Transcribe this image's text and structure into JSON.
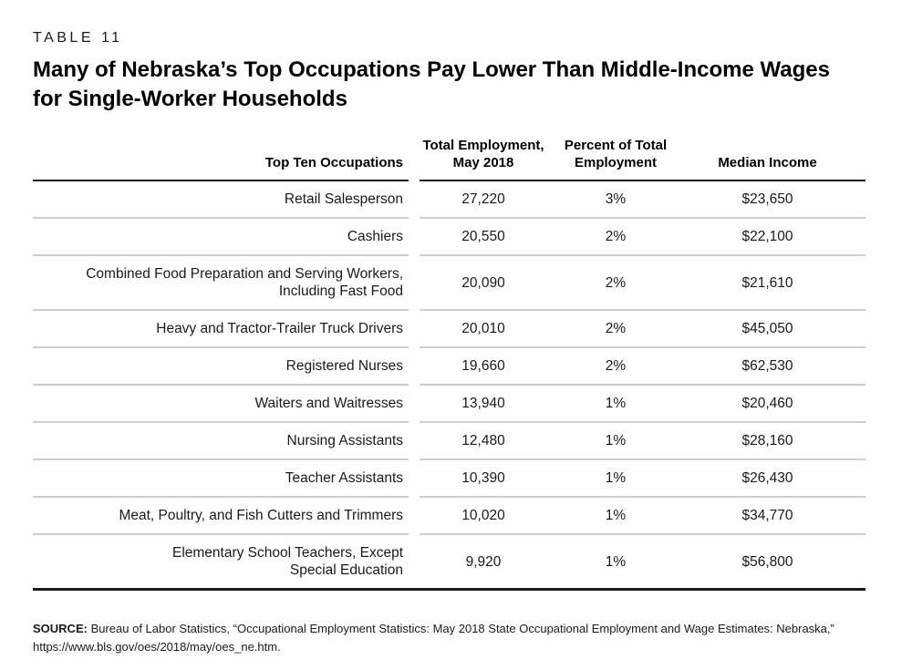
{
  "chart_data": {
    "type": "table",
    "table_label": "TABLE 11",
    "title": "Many of Nebraska’s Top Occupations Pay Lower Than Middle-Income Wages for Single-Worker Households",
    "columns": [
      "Top Ten Occupations",
      "Total Employment, May 2018",
      "Percent of Total Employment",
      "Median Income"
    ],
    "rows": [
      [
        "Retail Salesperson",
        "27,220",
        "3%",
        "$23,650"
      ],
      [
        "Cashiers",
        "20,550",
        "2%",
        "$22,100"
      ],
      [
        "Combined Food Preparation and Serving Workers, Including Fast Food",
        "20,090",
        "2%",
        "$21,610"
      ],
      [
        "Heavy and Tractor-Trailer Truck Drivers",
        "20,010",
        "2%",
        "$45,050"
      ],
      [
        "Registered Nurses",
        "19,660",
        "2%",
        "$62,530"
      ],
      [
        "Waiters and Waitresses",
        "13,940",
        "1%",
        "$20,460"
      ],
      [
        "Nursing Assistants",
        "12,480",
        "1%",
        "$28,160"
      ],
      [
        "Teacher Assistants",
        "10,390",
        "1%",
        "$26,430"
      ],
      [
        "Meat, Poultry, and Fish Cutters and Trimmers",
        "10,020",
        "1%",
        "$34,770"
      ],
      [
        "Elementary School Teachers, Except Special Education",
        "9,920",
        "1%",
        "$56,800"
      ]
    ],
    "source": "Bureau of Labor Statistics, “Occupational Employment Statistics: May 2018 State Occupational Employment and Wage Estimates: Nebraska,” https://www.bls.gov/oes/2018/may/oes_ne.htm."
  },
  "page": {
    "table_label": "TABLE 11",
    "title_line1": "Many of Nebraska’s Top Occupations Pay Lower Than Middle-Income Wages",
    "title_line2": "for Single-Worker Households"
  },
  "table": {
    "headers": [
      "Top Ten Occupations",
      "Total Employment,\nMay 2018",
      "Percent of Total\nEmployment",
      "Median Income"
    ],
    "rows": [
      {
        "occupation": "Retail Salesperson",
        "employment": "27,220",
        "percent": "3%",
        "median_income": "$23,650"
      },
      {
        "occupation": "Cashiers",
        "employment": "20,550",
        "percent": "2%",
        "median_income": "$22,100"
      },
      {
        "occupation": "Combined Food Preparation and Serving Workers,\nIncluding Fast Food",
        "employment": "20,090",
        "percent": "2%",
        "median_income": "$21,610"
      },
      {
        "occupation": "Heavy and Tractor-Trailer Truck Drivers",
        "employment": "20,010",
        "percent": "2%",
        "median_income": "$45,050"
      },
      {
        "occupation": "Registered Nurses",
        "employment": "19,660",
        "percent": "2%",
        "median_income": "$62,530"
      },
      {
        "occupation": "Waiters and Waitresses",
        "employment": "13,940",
        "percent": "1%",
        "median_income": "$20,460"
      },
      {
        "occupation": "Nursing Assistants",
        "employment": "12,480",
        "percent": "1%",
        "median_income": "$28,160"
      },
      {
        "occupation": "Teacher Assistants",
        "employment": "10,390",
        "percent": "1%",
        "median_income": "$26,430"
      },
      {
        "occupation": "Meat, Poultry, and Fish Cutters and Trimmers",
        "employment": "10,020",
        "percent": "1%",
        "median_income": "$34,770"
      },
      {
        "occupation": "Elementary School Teachers, Except\nSpecial Education",
        "employment": "9,920",
        "percent": "1%",
        "median_income": "$56,800"
      }
    ]
  },
  "source": {
    "label": "SOURCE:",
    "text": " Bureau of Labor Statistics, “Occupational Employment Statistics: May 2018 State Occupational Employment and Wage Estimates: Nebraska,” https://www.bls.gov/oes/2018/may/oes_ne.htm."
  },
  "colors": {
    "background": "#ffffff",
    "text": "#1a1a1a",
    "rule_dark": "#1a1a1a",
    "rule_light": "#cdcdcd"
  }
}
